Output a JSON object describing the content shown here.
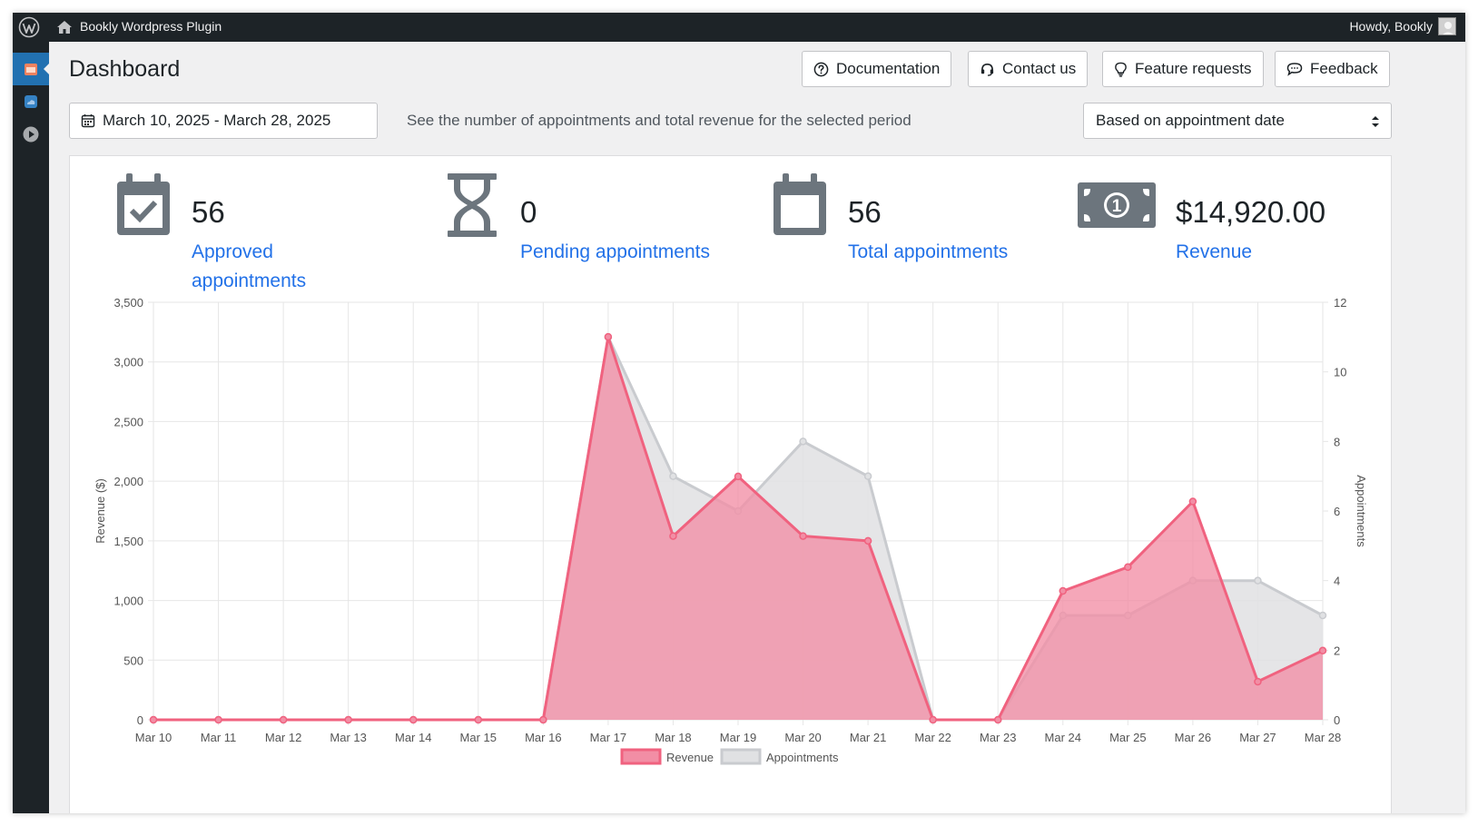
{
  "adminbar": {
    "site_name": "Bookly Wordpress Plugin",
    "greeting": "Howdy, Bookly"
  },
  "page": {
    "title": "Dashboard"
  },
  "header_buttons": {
    "documentation": "Documentation",
    "contact": "Contact us",
    "features": "Feature requests",
    "feedback": "Feedback"
  },
  "filters": {
    "date_range": "March 10, 2025 - March 28, 2025",
    "hint": "See the number of appointments and total revenue for the selected period",
    "basis": "Based on appointment date"
  },
  "stats": {
    "approved": {
      "value": "56",
      "label": "Approved appointments"
    },
    "pending": {
      "value": "0",
      "label": "Pending appointments"
    },
    "total": {
      "value": "56",
      "label": "Total appointments"
    },
    "revenue": {
      "value": "$14,920.00",
      "label": "Revenue"
    }
  },
  "colors": {
    "accent": "#2271e8",
    "revenue_line": "#f0627f",
    "revenue_fill": "#f28ea5",
    "appointments_line": "#c9cbcf",
    "appointments_fill": "#e0e1e3"
  },
  "chart_data": {
    "type": "area",
    "x": [
      "Mar 10",
      "Mar 11",
      "Mar 12",
      "Mar 13",
      "Mar 14",
      "Mar 15",
      "Mar 16",
      "Mar 17",
      "Mar 18",
      "Mar 19",
      "Mar 20",
      "Mar 21",
      "Mar 22",
      "Mar 23",
      "Mar 24",
      "Mar 25",
      "Mar 26",
      "Mar 27",
      "Mar 28"
    ],
    "series": [
      {
        "name": "Revenue",
        "axis": "left",
        "values": [
          0,
          0,
          0,
          0,
          0,
          0,
          0,
          3210,
          1540,
          2040,
          1540,
          1500,
          0,
          0,
          1080,
          1280,
          1830,
          320,
          580
        ]
      },
      {
        "name": "Appointments",
        "axis": "right",
        "values": [
          0,
          0,
          0,
          0,
          0,
          0,
          0,
          11,
          7,
          6,
          8,
          7,
          0,
          0,
          3,
          3,
          4,
          4,
          3
        ]
      }
    ],
    "ylabel": "Revenue ($)",
    "y2label": "Appointments",
    "ylim": [
      0,
      3500
    ],
    "y2lim": [
      0,
      12
    ],
    "yticks": [
      "0",
      "500",
      "1,000",
      "1,500",
      "2,000",
      "2,500",
      "3,000",
      "3,500"
    ],
    "y2ticks": [
      "0",
      "2",
      "4",
      "6",
      "8",
      "10",
      "12"
    ],
    "grid": true,
    "legend": "bottom"
  }
}
